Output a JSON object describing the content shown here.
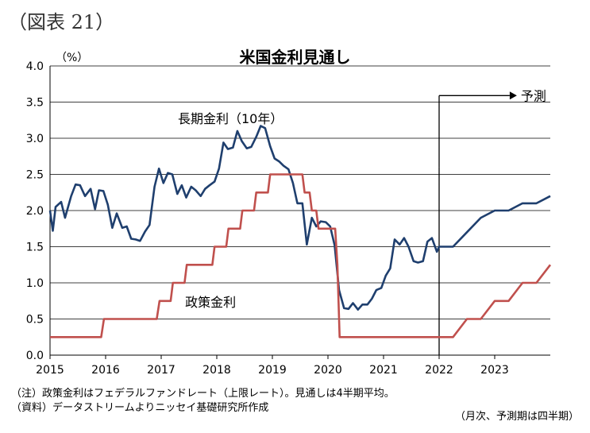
{
  "figure_label": "（図表 21）",
  "chart_data": {
    "type": "line",
    "title": "米国金利見通し",
    "y_unit": "（%）",
    "ylim": [
      0,
      4.0
    ],
    "yticks": [
      "0.0",
      "0.5",
      "1.0",
      "1.5",
      "2.0",
      "2.5",
      "3.0",
      "3.5",
      "4.0"
    ],
    "xlim": [
      2015,
      2024
    ],
    "xticks": [
      "2015",
      "2016",
      "2017",
      "2018",
      "2019",
      "2020",
      "2021",
      "2022",
      "2023"
    ],
    "grid": true,
    "forecast_start": 2022,
    "forecast_label": "予測",
    "series": [
      {
        "name": "長期金利（10年）",
        "color": "#1F3F6E",
        "points": [
          [
            2015.0,
            2.0
          ],
          [
            2015.05,
            1.72
          ],
          [
            2015.1,
            2.05
          ],
          [
            2015.2,
            2.12
          ],
          [
            2015.27,
            1.9
          ],
          [
            2015.38,
            2.2
          ],
          [
            2015.46,
            2.36
          ],
          [
            2015.54,
            2.35
          ],
          [
            2015.63,
            2.2
          ],
          [
            2015.73,
            2.3
          ],
          [
            2015.81,
            2.02
          ],
          [
            2015.88,
            2.28
          ],
          [
            2015.96,
            2.27
          ],
          [
            2016.04,
            2.08
          ],
          [
            2016.12,
            1.76
          ],
          [
            2016.2,
            1.96
          ],
          [
            2016.3,
            1.76
          ],
          [
            2016.38,
            1.78
          ],
          [
            2016.46,
            1.61
          ],
          [
            2016.54,
            1.6
          ],
          [
            2016.62,
            1.58
          ],
          [
            2016.71,
            1.71
          ],
          [
            2016.79,
            1.8
          ],
          [
            2016.88,
            2.33
          ],
          [
            2016.96,
            2.58
          ],
          [
            2017.04,
            2.38
          ],
          [
            2017.12,
            2.52
          ],
          [
            2017.2,
            2.5
          ],
          [
            2017.29,
            2.23
          ],
          [
            2017.37,
            2.35
          ],
          [
            2017.45,
            2.18
          ],
          [
            2017.54,
            2.33
          ],
          [
            2017.62,
            2.28
          ],
          [
            2017.71,
            2.2
          ],
          [
            2017.79,
            2.3
          ],
          [
            2017.87,
            2.35
          ],
          [
            2017.96,
            2.4
          ],
          [
            2018.04,
            2.58
          ],
          [
            2018.12,
            2.94
          ],
          [
            2018.2,
            2.85
          ],
          [
            2018.29,
            2.87
          ],
          [
            2018.37,
            3.1
          ],
          [
            2018.45,
            2.96
          ],
          [
            2018.54,
            2.86
          ],
          [
            2018.62,
            2.88
          ],
          [
            2018.71,
            3.02
          ],
          [
            2018.79,
            3.17
          ],
          [
            2018.87,
            3.14
          ],
          [
            2018.96,
            2.89
          ],
          [
            2019.04,
            2.72
          ],
          [
            2019.12,
            2.68
          ],
          [
            2019.2,
            2.62
          ],
          [
            2019.29,
            2.57
          ],
          [
            2019.37,
            2.38
          ],
          [
            2019.45,
            2.1
          ],
          [
            2019.54,
            2.1
          ],
          [
            2019.62,
            1.53
          ],
          [
            2019.71,
            1.9
          ],
          [
            2019.79,
            1.78
          ],
          [
            2019.87,
            1.85
          ],
          [
            2019.96,
            1.84
          ],
          [
            2020.04,
            1.78
          ],
          [
            2020.12,
            1.52
          ],
          [
            2020.2,
            0.9
          ],
          [
            2020.29,
            0.65
          ],
          [
            2020.37,
            0.64
          ],
          [
            2020.45,
            0.72
          ],
          [
            2020.54,
            0.63
          ],
          [
            2020.62,
            0.7
          ],
          [
            2020.71,
            0.7
          ],
          [
            2020.79,
            0.78
          ],
          [
            2020.87,
            0.9
          ],
          [
            2020.96,
            0.93
          ],
          [
            2021.04,
            1.1
          ],
          [
            2021.12,
            1.2
          ],
          [
            2021.2,
            1.6
          ],
          [
            2021.29,
            1.53
          ],
          [
            2021.37,
            1.62
          ],
          [
            2021.45,
            1.5
          ],
          [
            2021.54,
            1.3
          ],
          [
            2021.62,
            1.28
          ],
          [
            2021.71,
            1.3
          ],
          [
            2021.79,
            1.57
          ],
          [
            2021.87,
            1.62
          ],
          [
            2021.96,
            1.43
          ],
          [
            2022.0,
            1.5
          ],
          [
            2022.25,
            1.5
          ],
          [
            2022.5,
            1.7
          ],
          [
            2022.75,
            1.9
          ],
          [
            2023.0,
            2.0
          ],
          [
            2023.25,
            2.0
          ],
          [
            2023.5,
            2.1
          ],
          [
            2023.75,
            2.1
          ],
          [
            2024.0,
            2.2
          ]
        ]
      },
      {
        "name": "政策金利",
        "color": "#C0504D",
        "points": [
          [
            2015.0,
            0.25
          ],
          [
            2015.92,
            0.25
          ],
          [
            2015.97,
            0.5
          ],
          [
            2016.92,
            0.5
          ],
          [
            2016.97,
            0.75
          ],
          [
            2017.17,
            0.75
          ],
          [
            2017.21,
            1.0
          ],
          [
            2017.42,
            1.0
          ],
          [
            2017.46,
            1.25
          ],
          [
            2017.92,
            1.25
          ],
          [
            2017.96,
            1.5
          ],
          [
            2018.17,
            1.5
          ],
          [
            2018.21,
            1.75
          ],
          [
            2018.42,
            1.75
          ],
          [
            2018.46,
            2.0
          ],
          [
            2018.67,
            2.0
          ],
          [
            2018.71,
            2.25
          ],
          [
            2018.92,
            2.25
          ],
          [
            2018.96,
            2.5
          ],
          [
            2019.54,
            2.5
          ],
          [
            2019.58,
            2.25
          ],
          [
            2019.67,
            2.25
          ],
          [
            2019.71,
            2.0
          ],
          [
            2019.79,
            2.0
          ],
          [
            2019.83,
            1.75
          ],
          [
            2020.13,
            1.75
          ],
          [
            2020.17,
            1.25
          ],
          [
            2020.21,
            0.25
          ],
          [
            2022.25,
            0.25
          ],
          [
            2022.5,
            0.5
          ],
          [
            2022.75,
            0.5
          ],
          [
            2023.0,
            0.75
          ],
          [
            2023.25,
            0.75
          ],
          [
            2023.5,
            1.0
          ],
          [
            2023.75,
            1.0
          ],
          [
            2024.0,
            1.25
          ]
        ]
      }
    ],
    "annotations": {
      "long_rate_label": "長期金利（10年）",
      "policy_rate_label": "政策金利"
    }
  },
  "notes": {
    "line1": "（注）政策金利はフェデラルファンドレート（上限レート）。見通しは4半期平均。",
    "line2": "（資料）データストリームよりニッセイ基礎研究所作成",
    "line3": "（月次、予測期は四半期）"
  }
}
